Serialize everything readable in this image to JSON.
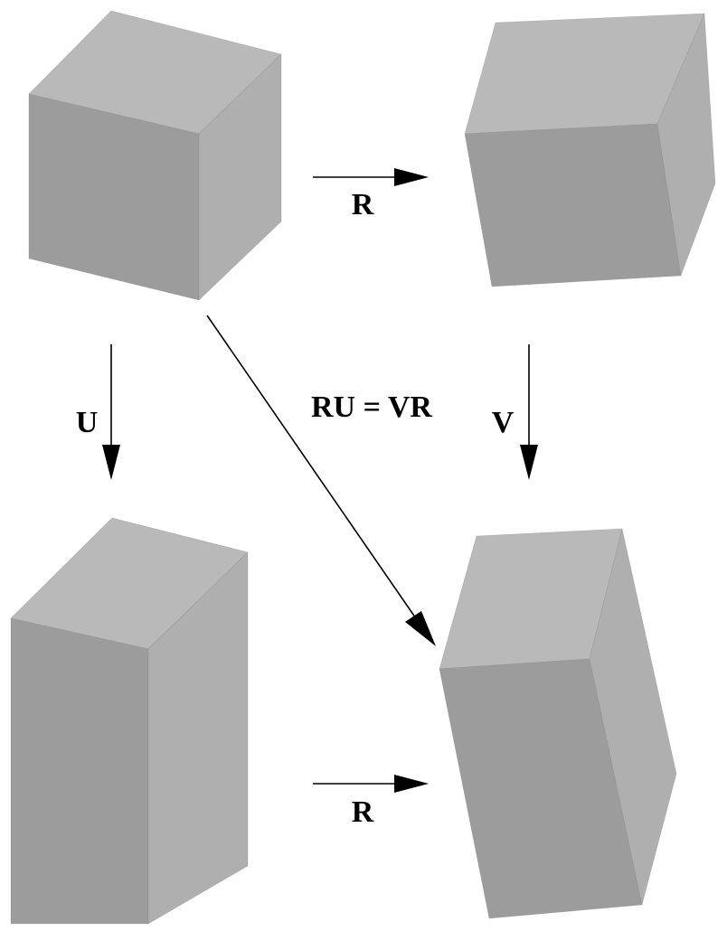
{
  "labels": {
    "top_arrow": "R",
    "bottom_arrow": "R",
    "left_arrow": "U",
    "right_arrow": "V",
    "diagonal": "RU = VR"
  },
  "colors": {
    "face_top": "#b9b9b9",
    "face_front": "#9c9c9c",
    "face_side": "#afafaf",
    "arrow": "#000000",
    "background": "#ffffff"
  }
}
